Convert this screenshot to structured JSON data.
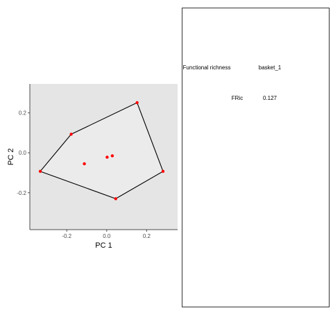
{
  "chart_data": {
    "type": "scatter",
    "xlabel": "PC 1",
    "ylabel": "PC 2",
    "xlim": [
      -0.385,
      0.355
    ],
    "ylim": [
      -0.385,
      0.345
    ],
    "x_ticks": [
      -0.2,
      0.0,
      0.2
    ],
    "y_ticks": [
      -0.2,
      0.0,
      0.2
    ],
    "x_tick_labels": [
      "-0.2",
      "0.0",
      "0.2"
    ],
    "y_tick_labels": [
      "-0.2",
      "0.0",
      "0.2"
    ],
    "grid": false,
    "panel_background": "#e5e5e5",
    "hull_fill": "#ebebeb",
    "point_color": "#ff0000",
    "hull_color": "#000000",
    "points": [
      {
        "x": 0.152,
        "y": 0.251
      },
      {
        "x": -0.178,
        "y": 0.093
      },
      {
        "x": -0.333,
        "y": -0.093
      },
      {
        "x": 0.045,
        "y": -0.23
      },
      {
        "x": 0.282,
        "y": -0.093
      },
      {
        "x": -0.112,
        "y": -0.055
      },
      {
        "x": 0.002,
        "y": -0.022
      },
      {
        "x": 0.028,
        "y": -0.015
      }
    ],
    "hull": [
      {
        "x": 0.152,
        "y": 0.251
      },
      {
        "x": -0.178,
        "y": 0.093
      },
      {
        "x": -0.333,
        "y": -0.093
      },
      {
        "x": 0.045,
        "y": -0.23
      },
      {
        "x": 0.282,
        "y": -0.093
      }
    ]
  },
  "table": {
    "headers": [
      "Functional richness",
      "basket_1"
    ],
    "rows": [
      {
        "label": "FRic",
        "value": "0.127"
      }
    ]
  }
}
